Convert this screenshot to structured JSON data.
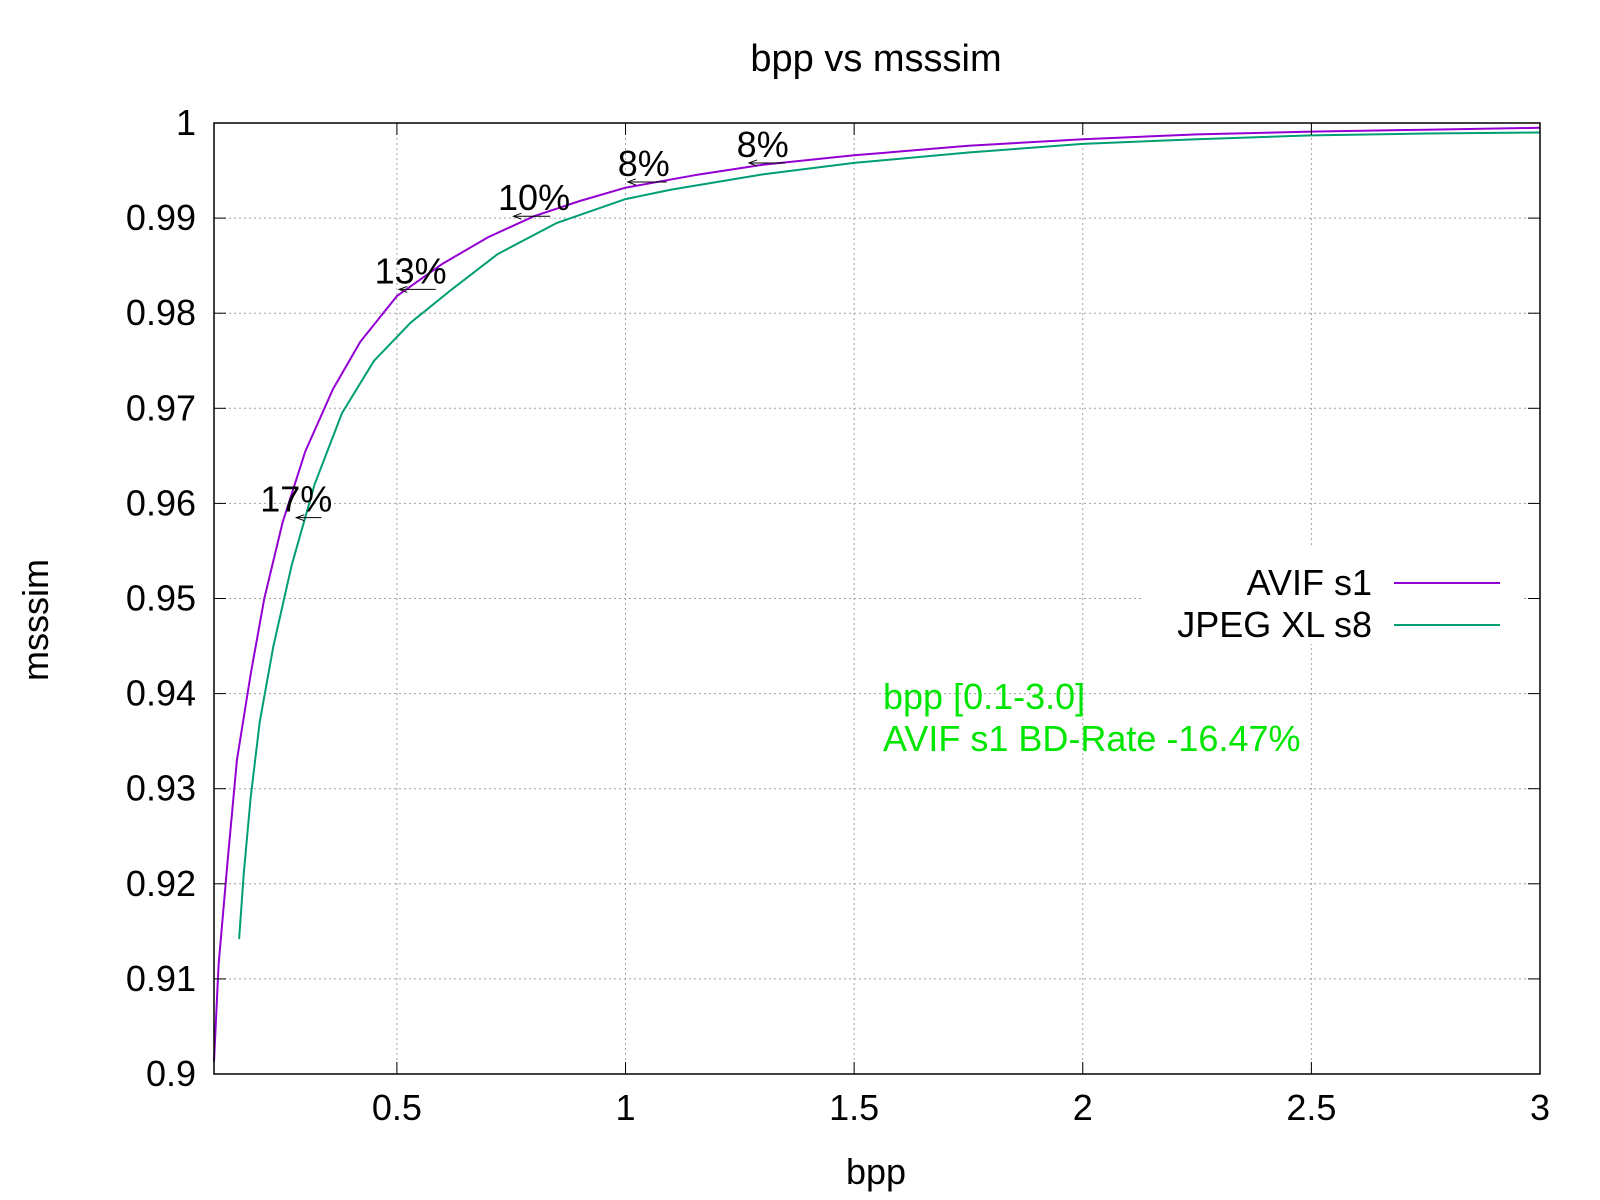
{
  "chart_data": {
    "type": "line",
    "title": "bpp vs msssim",
    "xlabel": "bpp",
    "ylabel": "msssim",
    "xlim": [
      0.1,
      3.0
    ],
    "ylim": [
      0.9,
      1.0
    ],
    "x_ticks": [
      0.5,
      1,
      1.5,
      2,
      2.5,
      3
    ],
    "x_tick_labels": [
      "0.5",
      "1",
      "1.5",
      "2",
      "2.5",
      "3"
    ],
    "y_ticks": [
      0.9,
      0.91,
      0.92,
      0.93,
      0.94,
      0.95,
      0.96,
      0.97,
      0.98,
      0.99,
      1.0
    ],
    "y_tick_labels": [
      "0.9",
      "0.91",
      "0.92",
      "0.93",
      "0.94",
      "0.95",
      "0.96",
      "0.97",
      "0.98",
      "0.99",
      "1"
    ],
    "grid": true,
    "legend_position": "right",
    "series": [
      {
        "name": "AVIF s1",
        "color": "#9400d3",
        "points": [
          [
            0.1,
            0.9013
          ],
          [
            0.11,
            0.9115
          ],
          [
            0.13,
            0.9225
          ],
          [
            0.15,
            0.933
          ],
          [
            0.18,
            0.942
          ],
          [
            0.21,
            0.95
          ],
          [
            0.25,
            0.958
          ],
          [
            0.3,
            0.9655
          ],
          [
            0.36,
            0.972
          ],
          [
            0.42,
            0.977
          ],
          [
            0.5,
            0.9818
          ],
          [
            0.6,
            0.9852
          ],
          [
            0.7,
            0.988
          ],
          [
            0.8,
            0.9902
          ],
          [
            0.9,
            0.9918
          ],
          [
            1.0,
            0.9932
          ],
          [
            1.15,
            0.9945
          ],
          [
            1.3,
            0.9956
          ],
          [
            1.5,
            0.9966
          ],
          [
            1.75,
            0.9976
          ],
          [
            2.0,
            0.9983
          ],
          [
            2.25,
            0.9988
          ],
          [
            2.5,
            0.9991
          ],
          [
            2.75,
            0.9993
          ],
          [
            3.0,
            0.9995
          ]
        ]
      },
      {
        "name": "JPEG XL s8",
        "color": "#009e73",
        "points": [
          [
            0.155,
            0.9142
          ],
          [
            0.165,
            0.921
          ],
          [
            0.18,
            0.929
          ],
          [
            0.2,
            0.937
          ],
          [
            0.23,
            0.945
          ],
          [
            0.27,
            0.9535
          ],
          [
            0.32,
            0.962
          ],
          [
            0.38,
            0.9695
          ],
          [
            0.45,
            0.975
          ],
          [
            0.53,
            0.979
          ],
          [
            0.62,
            0.9825
          ],
          [
            0.72,
            0.9862
          ],
          [
            0.85,
            0.9895
          ],
          [
            1.0,
            0.992
          ],
          [
            1.1,
            0.993
          ],
          [
            1.3,
            0.9946
          ],
          [
            1.5,
            0.9958
          ],
          [
            1.75,
            0.9969
          ],
          [
            2.0,
            0.9978
          ],
          [
            2.25,
            0.9983
          ],
          [
            2.5,
            0.9987
          ],
          [
            2.75,
            0.9989
          ],
          [
            3.0,
            0.999
          ]
        ]
      }
    ],
    "annotations": [
      {
        "text": "17%",
        "x": 0.28,
        "y": 0.9585,
        "x_from": 0.28,
        "x_to": 0.335
      },
      {
        "text": "13%",
        "x": 0.53,
        "y": 0.9825,
        "x_from": 0.505,
        "x_to": 0.585
      },
      {
        "text": "10%",
        "x": 0.8,
        "y": 0.9902,
        "x_from": 0.755,
        "x_to": 0.835
      },
      {
        "text": "8%",
        "x": 1.04,
        "y": 0.9938,
        "x_from": 1.005,
        "x_to": 1.09
      },
      {
        "text": "8%",
        "x": 1.3,
        "y": 0.9958,
        "x_from": 1.27,
        "x_to": 1.35
      }
    ],
    "info_text": [
      "bpp [0.1-3.0]",
      "AVIF s1 BD-Rate -16.47%"
    ],
    "info_color": "#00e600"
  }
}
